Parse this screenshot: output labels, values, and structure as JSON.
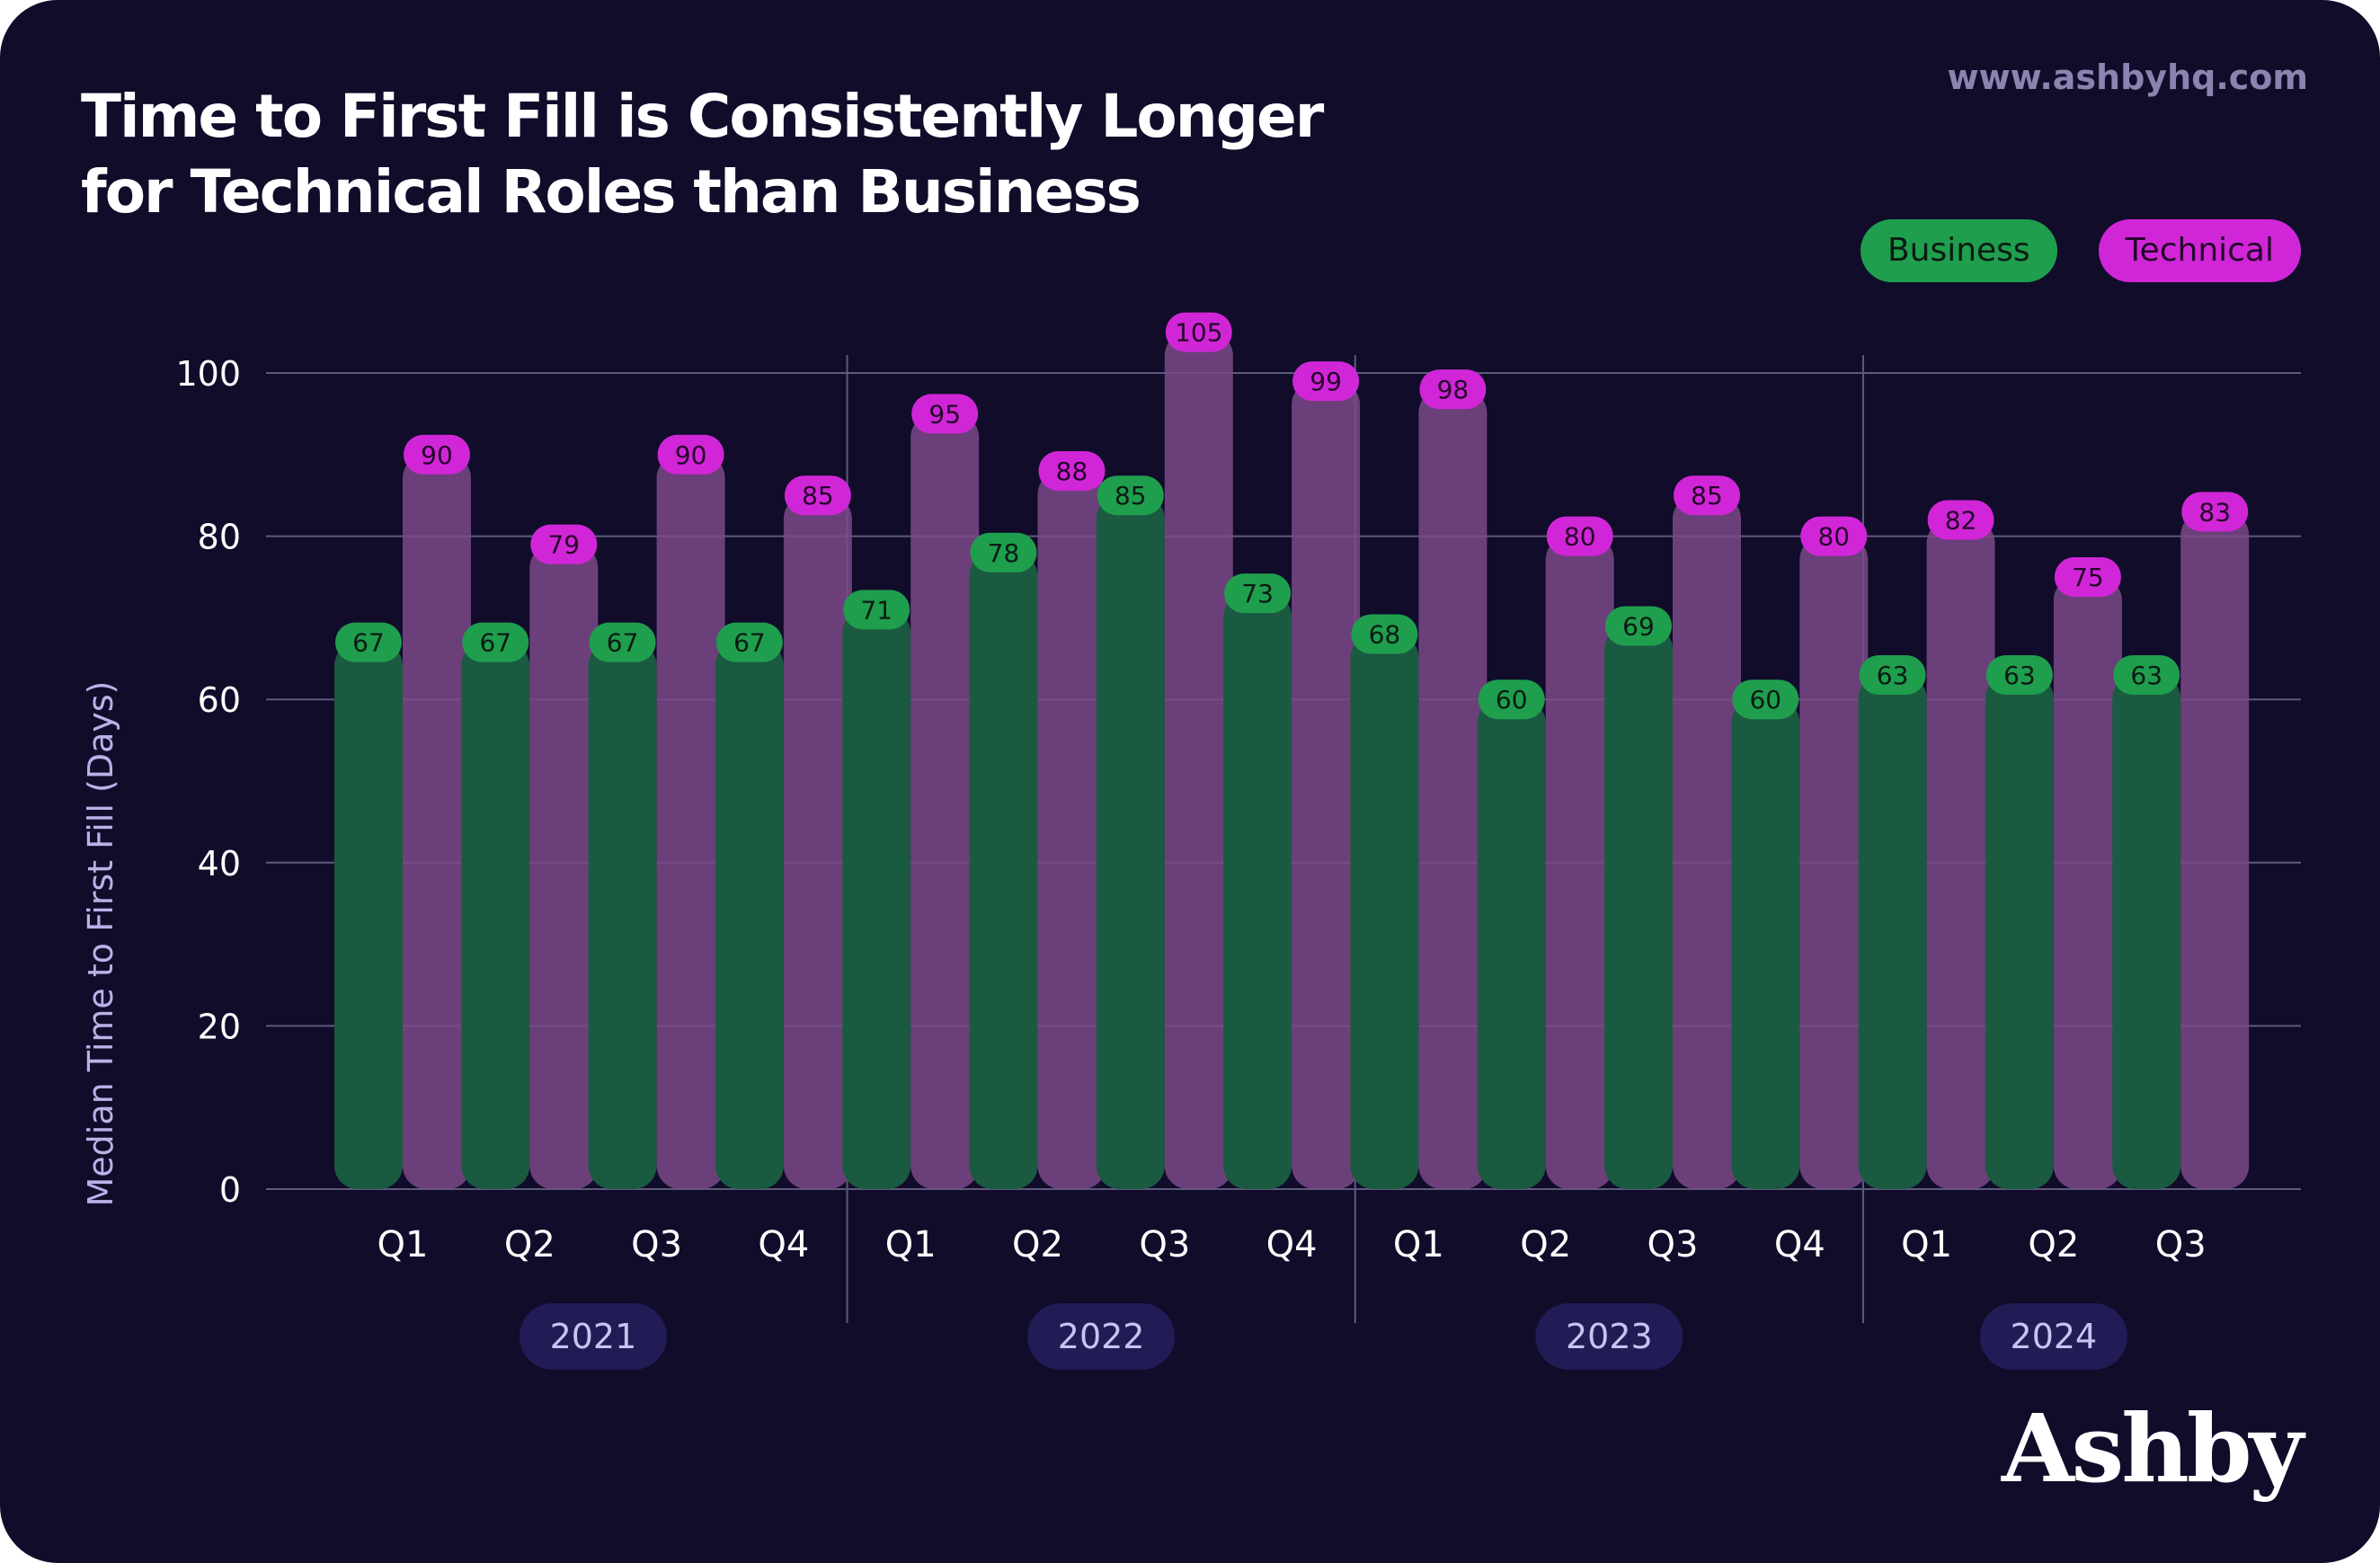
{
  "header": {
    "title_line1": "Time to First Fill is Consistently Longer",
    "title_line2": "for Technical Roles than Business",
    "url": "www.ashbyhq.com"
  },
  "legend": {
    "business": "Business",
    "technical": "Technical"
  },
  "brand": {
    "wordmark": "Ashby"
  },
  "colors": {
    "background": "#100c2a",
    "business": "#1f9e4e",
    "business_bar": "#1a5a40",
    "technical": "#d126d7",
    "technical_bar": "#7b4a88",
    "year_pill": "#221c56",
    "grid": "#5e5a7c"
  },
  "chart_data": {
    "type": "bar",
    "title": "Time to First Fill is Consistently Longer for Technical Roles than Business",
    "ylabel": "Median Time to First Fill (Days)",
    "xlabel": "",
    "ylim": [
      0,
      100
    ],
    "yticks": [
      0,
      20,
      40,
      60,
      80,
      100
    ],
    "grid": true,
    "legend_position": "top-right",
    "categories": [
      "Q1",
      "Q2",
      "Q3",
      "Q4",
      "Q1",
      "Q2",
      "Q3",
      "Q4",
      "Q1",
      "Q2",
      "Q3",
      "Q4",
      "Q1",
      "Q2",
      "Q3"
    ],
    "groups": [
      {
        "label": "2021",
        "count": 4
      },
      {
        "label": "2022",
        "count": 4
      },
      {
        "label": "2023",
        "count": 4
      },
      {
        "label": "2024",
        "count": 3
      }
    ],
    "series": [
      {
        "name": "Business",
        "values": [
          67,
          67,
          67,
          67,
          71,
          78,
          85,
          73,
          68,
          60,
          69,
          60,
          63,
          63,
          63
        ]
      },
      {
        "name": "Technical",
        "values": [
          90,
          79,
          90,
          85,
          95,
          88,
          105,
          99,
          98,
          80,
          85,
          80,
          82,
          75,
          83
        ]
      }
    ]
  }
}
